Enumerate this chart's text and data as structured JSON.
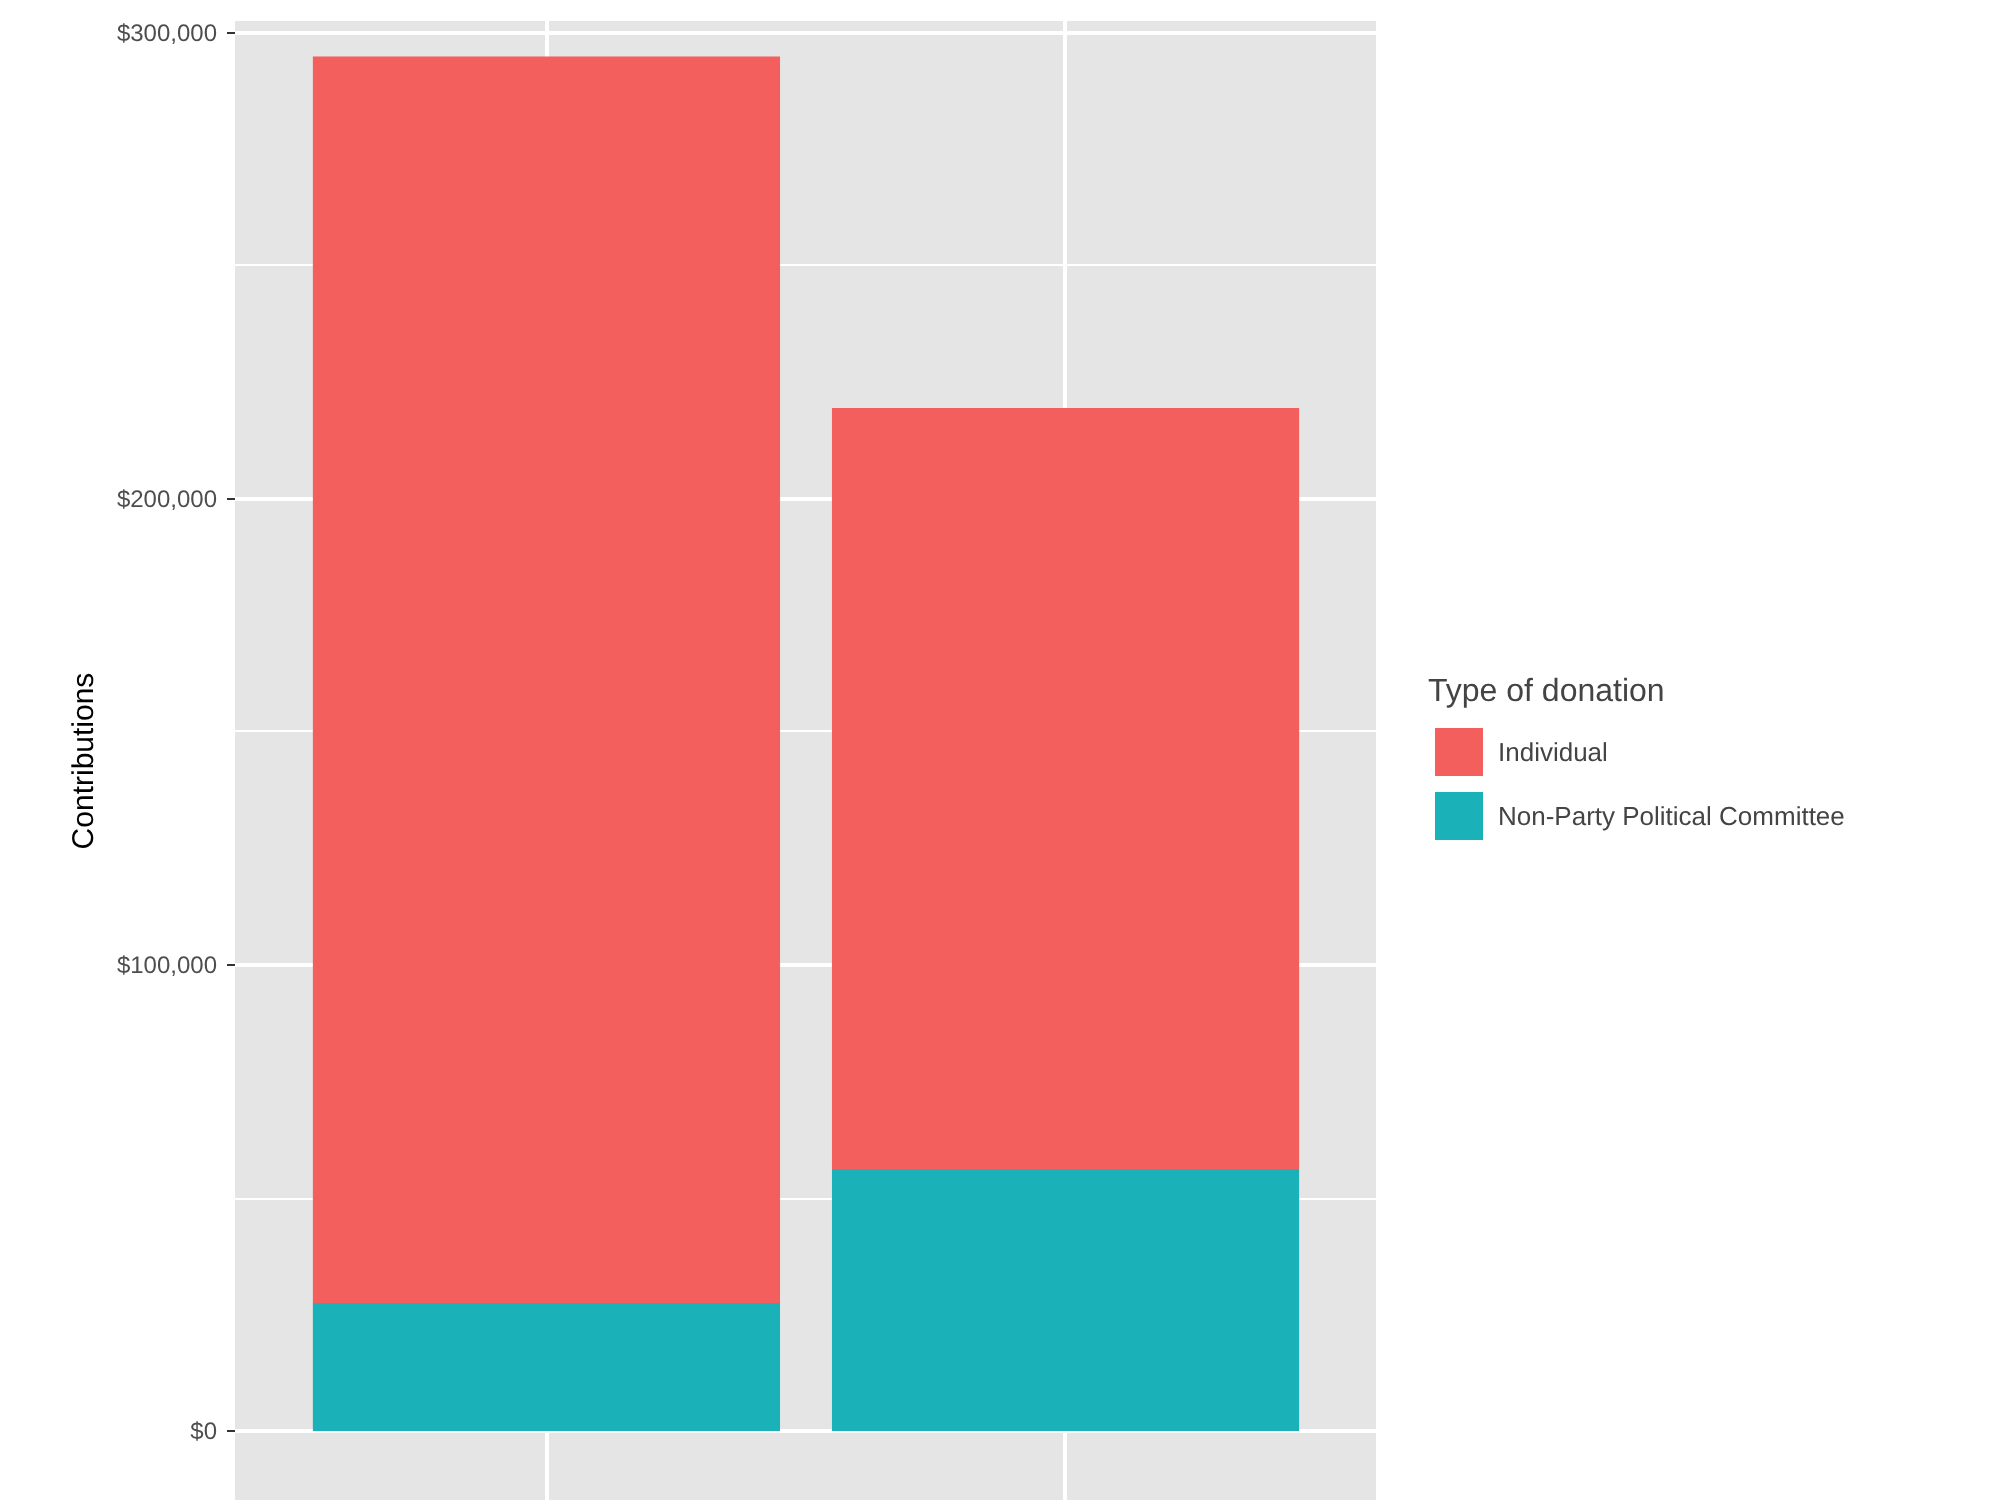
{
  "chart_data": {
    "type": "bar",
    "stacked": true,
    "categories": [
      null,
      null
    ],
    "series": [
      {
        "name": "Non-Party Political Committee",
        "color": "#1ab2b8",
        "values": [
          27500,
          56200
        ]
      },
      {
        "name": "Individual",
        "color": "#f25f5c",
        "values": [
          267400,
          163300
        ]
      }
    ],
    "ylabel": "Contributions",
    "legend_title": "Type of donation",
    "ylim": [
      -15000,
      302500
    ],
    "yticks": [
      {
        "value": 0,
        "label": "$0"
      },
      {
        "value": 50000,
        "label": null
      },
      {
        "value": 100000,
        "label": "$100,000"
      },
      {
        "value": 150000,
        "label": null
      },
      {
        "value": 200000,
        "label": "$200,000"
      },
      {
        "value": 250000,
        "label": null
      },
      {
        "value": 300000,
        "label": "$300,000"
      }
    ],
    "grid": true,
    "legend": "right",
    "tick_labels": "y"
  }
}
